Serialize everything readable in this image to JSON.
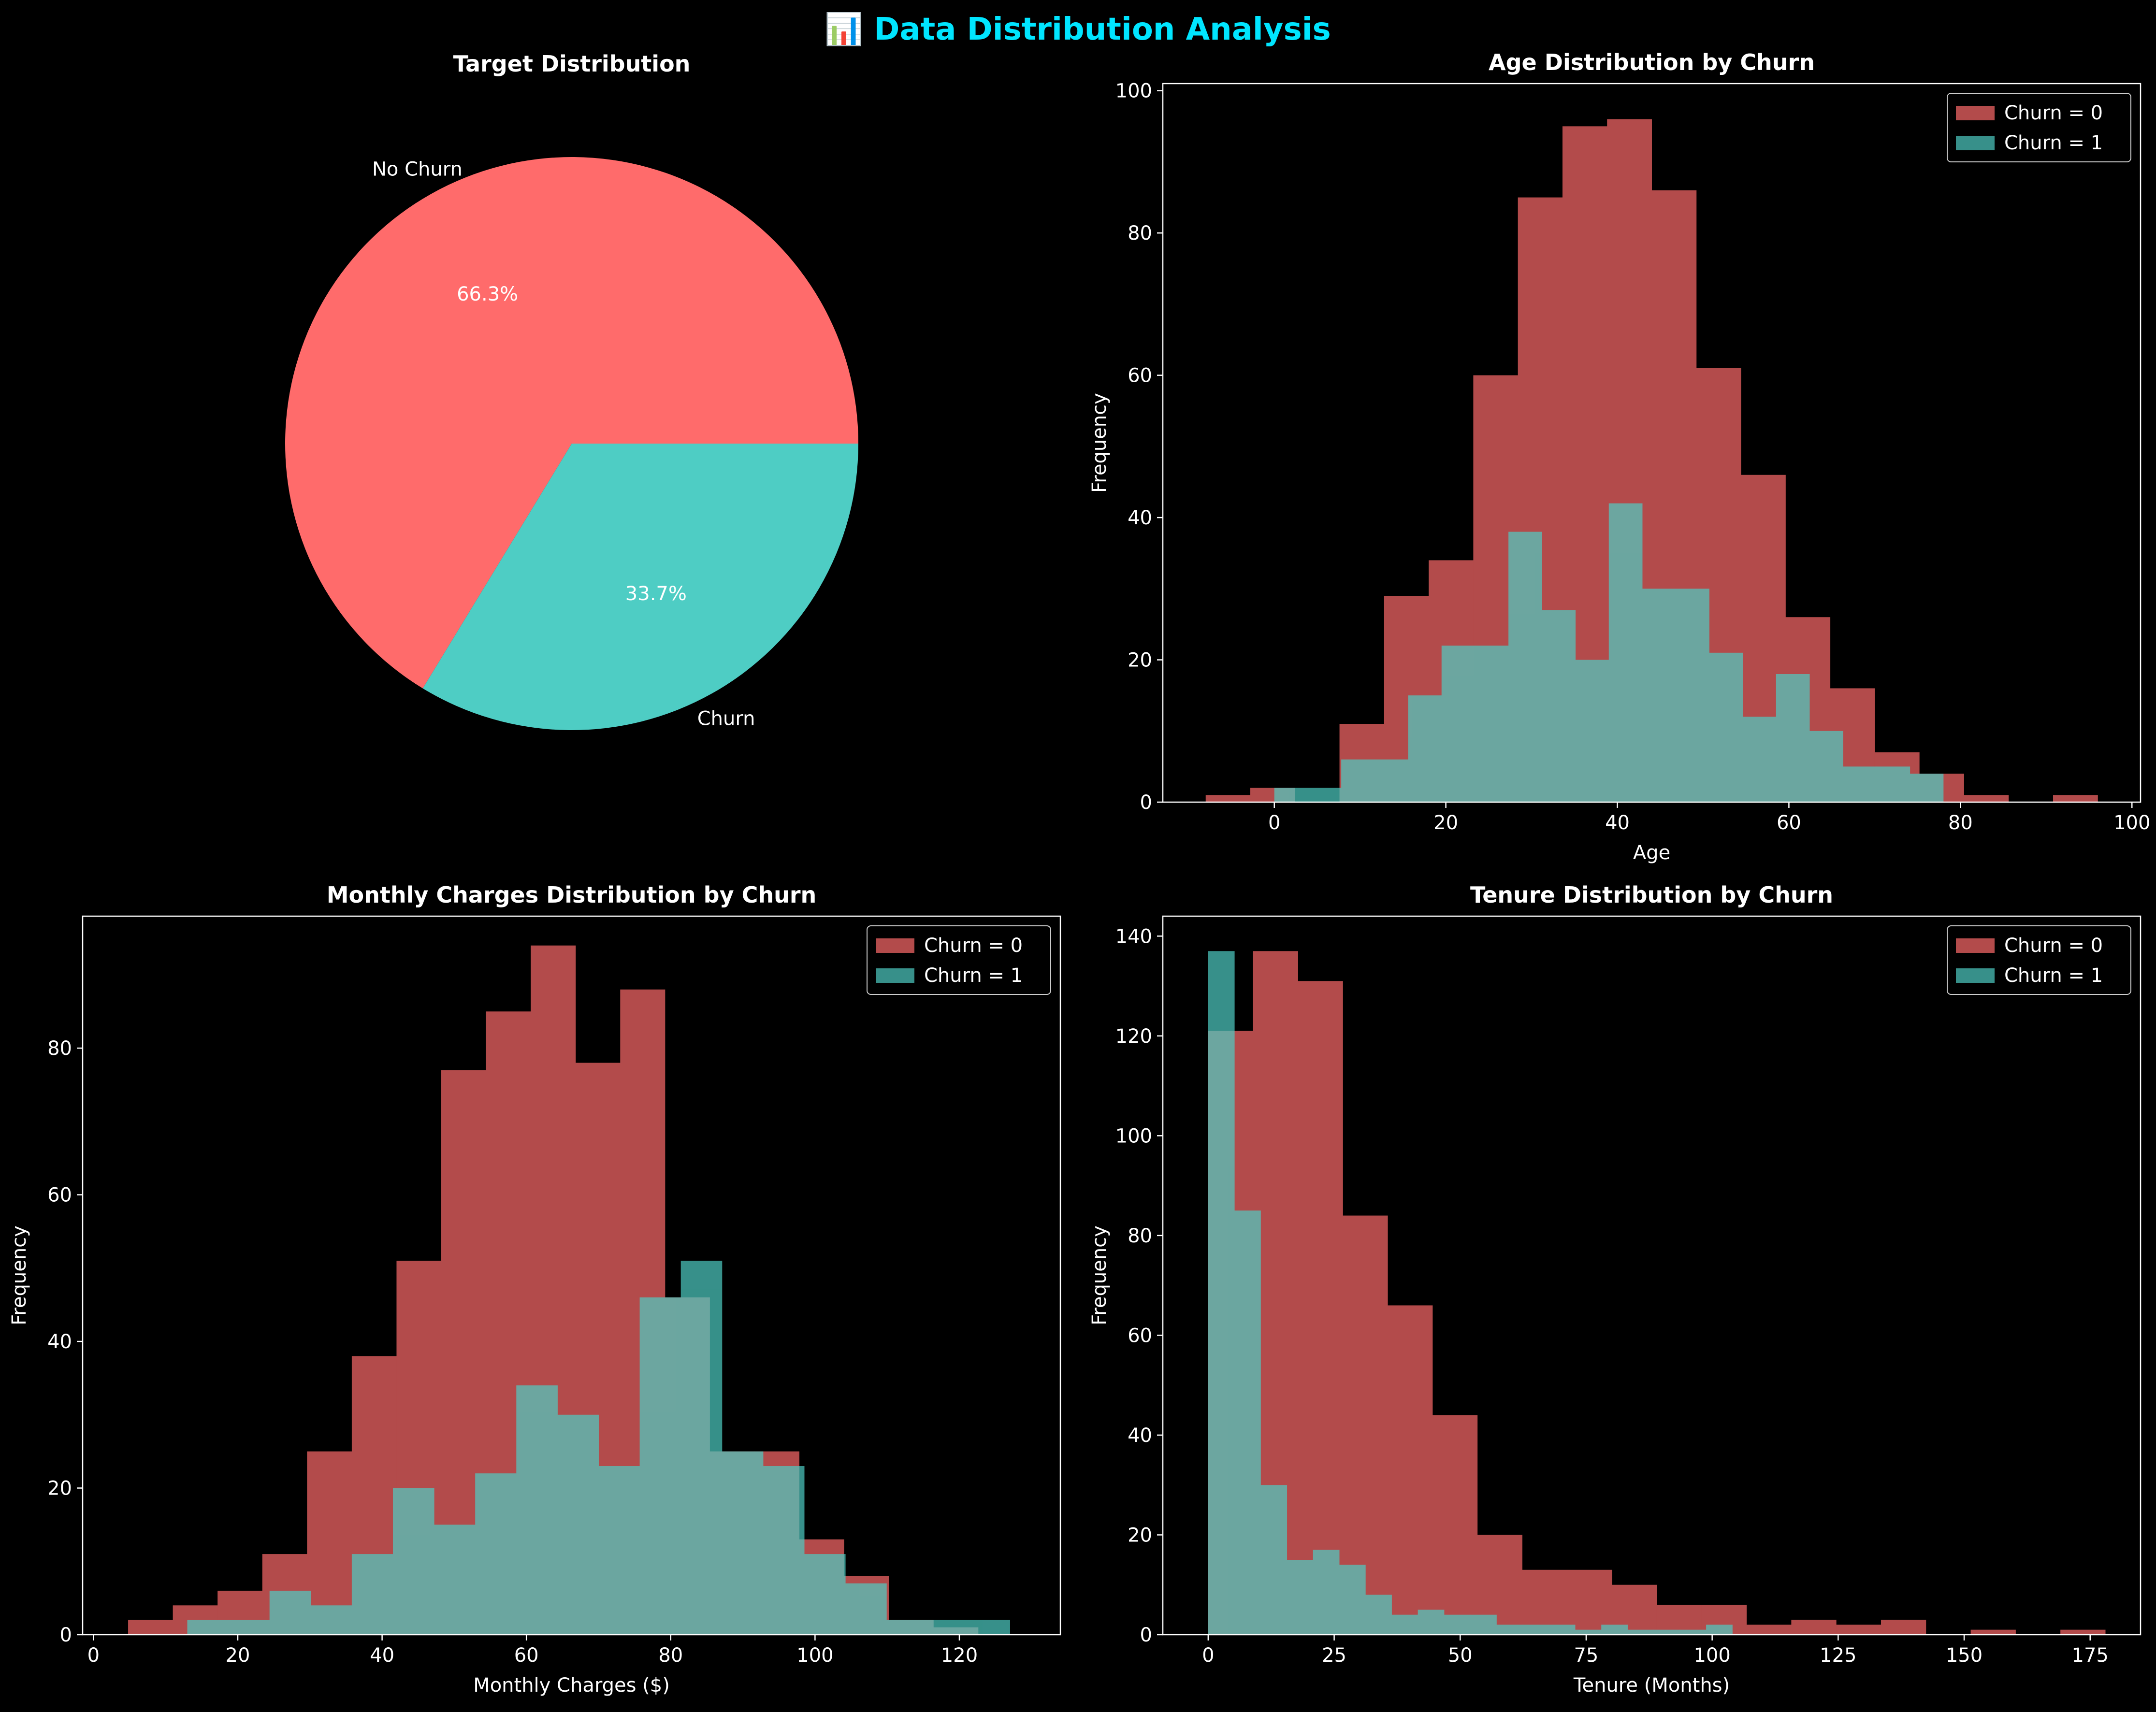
{
  "figure": {
    "title": "📊 Data Distribution Analysis",
    "background": "#000000",
    "text_color": "#ffffff",
    "title_color": "#00e5ff",
    "colors": {
      "churn_0": "#ff6b6b",
      "churn_1": "#4ecdc4",
      "churn_0_hist": "#ff6b6b",
      "churn_1_hist": "#4ecdc4"
    }
  },
  "chart_data": [
    {
      "id": "pie",
      "type": "pie",
      "title": "Target Distribution",
      "labels": [
        "No Churn",
        "Churn"
      ],
      "values": [
        66.3,
        33.7
      ],
      "autopct": [
        "66.3%",
        "33.7%"
      ],
      "colors": [
        "#ff6b6b",
        "#4ecdc4"
      ]
    },
    {
      "id": "age",
      "type": "bar",
      "title": "Age Distribution by Churn",
      "xlabel": "Age",
      "ylabel": "Frequency",
      "xlim": [
        -13,
        101
      ],
      "ylim": [
        0,
        101
      ],
      "xticks": [
        0,
        20,
        40,
        60,
        80,
        100
      ],
      "yticks": [
        0,
        20,
        40,
        60,
        80,
        100
      ],
      "legend": "top-right",
      "series": [
        {
          "name": "Churn = 0",
          "color": "#ff6b6b",
          "edges": [
            -8,
            -2.8,
            2.4,
            7.6,
            12.8,
            18,
            23.2,
            28.4,
            33.6,
            38.8,
            44,
            49.2,
            54.4,
            59.6,
            64.8,
            70,
            75.2,
            80.4,
            85.6,
            90.8,
            96
          ],
          "values": [
            1,
            2,
            0,
            11,
            29,
            34,
            60,
            85,
            95,
            96,
            86,
            61,
            46,
            26,
            16,
            7,
            4,
            1,
            0,
            1
          ]
        },
        {
          "name": "Churn = 1",
          "color": "#4ecdc4",
          "edges": [
            0,
            3.9,
            7.8,
            11.7,
            15.6,
            19.5,
            23.4,
            27.3,
            31.2,
            35.1,
            39,
            42.9,
            46.8,
            50.7,
            54.6,
            58.5,
            62.4,
            66.3,
            70.2,
            74.1,
            78
          ],
          "values": [
            2,
            2,
            6,
            6,
            15,
            22,
            22,
            38,
            27,
            20,
            42,
            30,
            30,
            21,
            12,
            18,
            10,
            5,
            5,
            4
          ]
        }
      ]
    },
    {
      "id": "charges",
      "type": "bar",
      "title": "Monthly Charges Distribution by Churn",
      "xlabel": "Monthly Charges ($)",
      "ylabel": "Frequency",
      "xlim": [
        -1.5,
        134
      ],
      "ylim": [
        0,
        98
      ],
      "xticks": [
        0,
        20,
        40,
        60,
        80,
        100,
        120
      ],
      "yticks": [
        0,
        20,
        40,
        60,
        80
      ],
      "legend": "top-right",
      "series": [
        {
          "name": "Churn = 0",
          "color": "#ff6b6b",
          "edges": [
            4.8,
            11,
            17.2,
            23.4,
            29.6,
            35.8,
            42,
            48.2,
            54.4,
            60.6,
            66.8,
            73,
            79.2,
            85.4,
            91.6,
            97.8,
            104,
            110.2,
            116.4,
            122.6,
            128.8
          ],
          "values": [
            2,
            4,
            6,
            11,
            25,
            38,
            51,
            77,
            85,
            94,
            78,
            88,
            46,
            25,
            25,
            13,
            8,
            2,
            1,
            0
          ]
        },
        {
          "name": "Churn = 1",
          "color": "#4ecdc4",
          "edges": [
            13,
            18.7,
            24.4,
            30.1,
            35.8,
            41.5,
            47.2,
            52.9,
            58.6,
            64.3,
            70,
            75.7,
            81.4,
            87.1,
            92.8,
            98.5,
            104.2,
            109.9,
            115.6,
            121.3,
            127
          ],
          "values": [
            2,
            2,
            6,
            4,
            11,
            20,
            15,
            22,
            34,
            30,
            23,
            46,
            51,
            25,
            23,
            11,
            7,
            2,
            2,
            2
          ]
        }
      ]
    },
    {
      "id": "tenure",
      "type": "bar",
      "title": "Tenure Distribution by Churn",
      "xlabel": "Tenure (Months)",
      "ylabel": "Frequency",
      "xlim": [
        -9,
        185
      ],
      "ylim": [
        0,
        144
      ],
      "xticks": [
        0,
        25,
        50,
        75,
        100,
        125,
        150,
        175
      ],
      "yticks": [
        0,
        20,
        40,
        60,
        80,
        100,
        120,
        140
      ],
      "legend": "top-right",
      "series": [
        {
          "name": "Churn = 0",
          "color": "#ff6b6b",
          "edges": [
            0,
            8.9,
            17.8,
            26.7,
            35.6,
            44.5,
            53.4,
            62.3,
            71.2,
            80.1,
            89,
            97.9,
            106.8,
            115.7,
            124.6,
            133.5,
            142.4,
            151.3,
            160.2,
            169.1,
            178
          ],
          "values": [
            121,
            137,
            131,
            84,
            66,
            44,
            20,
            13,
            13,
            10,
            6,
            6,
            2,
            3,
            2,
            3,
            0,
            1,
            0,
            1
          ]
        },
        {
          "name": "Churn = 1",
          "color": "#4ecdc4",
          "edges": [
            0,
            5.2,
            10.4,
            15.6,
            20.8,
            26,
            31.2,
            36.4,
            41.6,
            46.8,
            52,
            57.2,
            62.4,
            67.6,
            72.8,
            78,
            83.2,
            88.4,
            93.6,
            98.8,
            104
          ],
          "values": [
            137,
            85,
            30,
            15,
            17,
            14,
            8,
            4,
            5,
            4,
            4,
            2,
            2,
            2,
            1,
            2,
            1,
            1,
            1,
            2
          ]
        }
      ]
    }
  ]
}
